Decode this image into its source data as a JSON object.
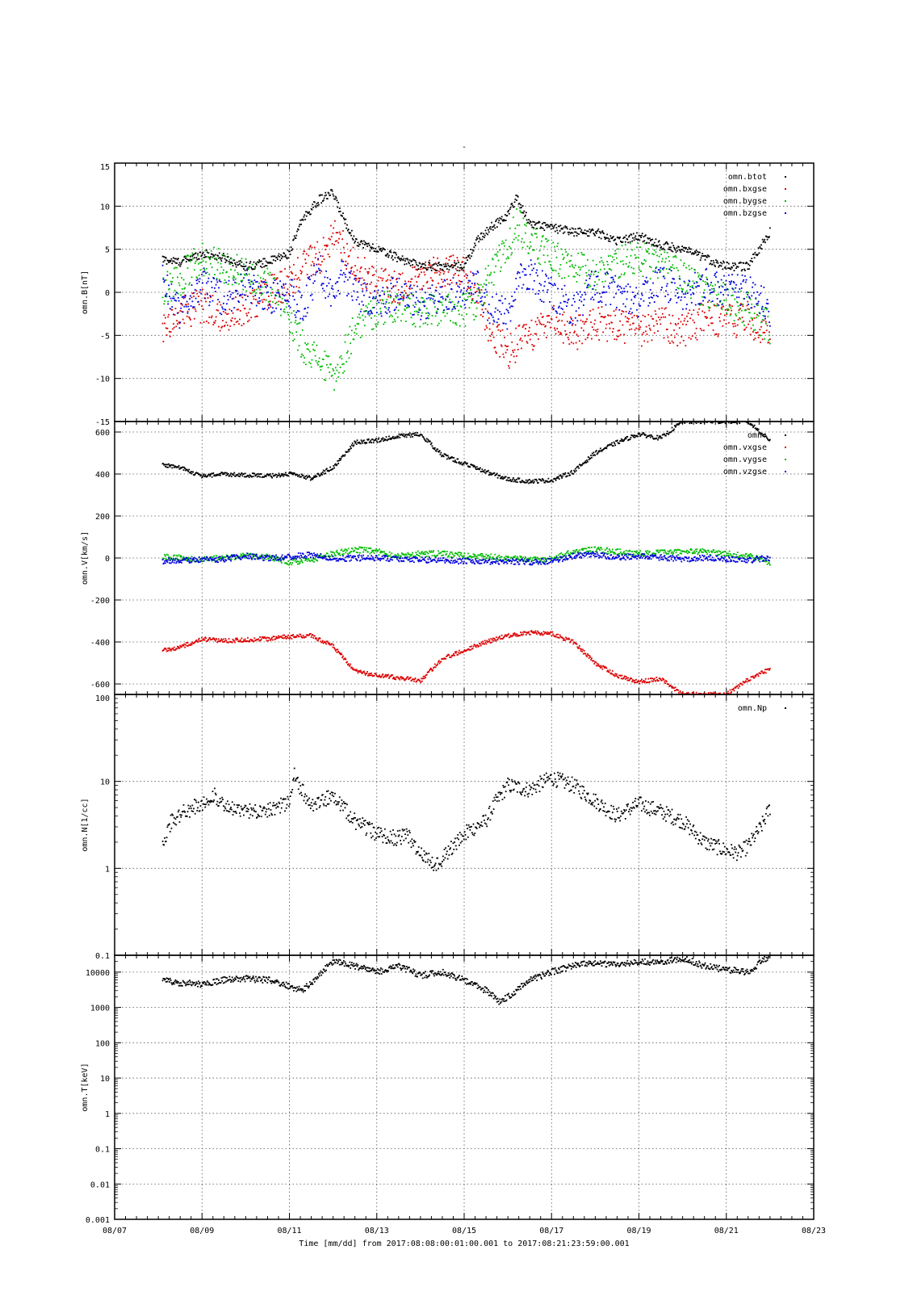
{
  "title": "-",
  "footer": "Time [mm/dd]  from 2017:08:08:00:01:00.001  to  2017:08:21:23:59:00.001",
  "chart_data": [
    {
      "type": "scatter",
      "ylabel": "omn.B[nT]",
      "ylim": [
        -15,
        15
      ],
      "yticks": [
        "15",
        "10",
        "5",
        "0",
        "-5",
        "-10",
        "-15"
      ],
      "grid": true,
      "legend_position": "top-right",
      "x_units": "days since 08/07 00:00",
      "series": [
        {
          "name": "omn.btot",
          "color": "#000000",
          "x": [
            1.1,
            1.5,
            2.0,
            2.5,
            3.0,
            3.5,
            4.0,
            4.3,
            4.7,
            5.0,
            5.2,
            5.5,
            6.0,
            6.5,
            7.0,
            7.5,
            8.0,
            8.3,
            8.6,
            9.0,
            9.2,
            9.5,
            10.0,
            10.5,
            11.0,
            11.5,
            12.0,
            12.5,
            13.0,
            13.5,
            14.0,
            14.5,
            15.0
          ],
          "y": [
            3.8,
            3.5,
            4.5,
            4.0,
            3.0,
            3.5,
            4.5,
            8.5,
            10.8,
            11.5,
            9.0,
            6.0,
            5.0,
            4.0,
            3.0,
            3.0,
            3.0,
            6.0,
            7.5,
            9.0,
            11.0,
            8.0,
            7.5,
            7.0,
            7.0,
            6.0,
            6.5,
            5.5,
            5.0,
            4.0,
            3.0,
            3.0,
            7.0
          ]
        },
        {
          "name": "omn.bxgse",
          "color": "#dd0000",
          "x": [
            1.1,
            1.5,
            2.0,
            2.5,
            3.0,
            3.5,
            4.0,
            4.3,
            4.7,
            5.0,
            5.2,
            5.5,
            6.0,
            6.5,
            7.0,
            7.5,
            8.0,
            8.3,
            8.6,
            9.0,
            9.2,
            9.5,
            10.0,
            10.5,
            11.0,
            11.5,
            12.0,
            12.5,
            13.0,
            13.5,
            14.0,
            14.5,
            15.0
          ],
          "y": [
            -3.8,
            -2.5,
            -1.5,
            -2.8,
            -2.0,
            0.0,
            1.0,
            3.0,
            4.0,
            6.5,
            5.5,
            3.0,
            1.0,
            0.5,
            2.0,
            2.5,
            2.5,
            0.0,
            -4.5,
            -7.0,
            -6.0,
            -5.0,
            -3.0,
            -5.0,
            -3.5,
            -4.0,
            -4.5,
            -3.5,
            -4.5,
            -3.0,
            -3.5,
            -3.0,
            -5.0
          ]
        },
        {
          "name": "omn.bygse",
          "color": "#00bb00",
          "x": [
            1.1,
            1.5,
            2.0,
            2.5,
            3.0,
            3.5,
            4.0,
            4.3,
            4.7,
            5.0,
            5.2,
            5.5,
            6.0,
            6.5,
            7.0,
            7.5,
            8.0,
            8.3,
            8.6,
            9.0,
            9.2,
            9.5,
            10.0,
            10.5,
            11.0,
            11.5,
            12.0,
            12.5,
            13.0,
            13.5,
            14.0,
            14.5,
            15.0
          ],
          "y": [
            0.5,
            1.5,
            4.0,
            3.0,
            2.0,
            1.0,
            -3.0,
            -6.0,
            -8.0,
            -10.0,
            -8.0,
            -4.0,
            -2.0,
            -1.5,
            -2.5,
            -2.0,
            -2.0,
            -1.0,
            2.0,
            5.0,
            8.0,
            6.0,
            4.0,
            3.0,
            2.0,
            3.5,
            4.0,
            3.0,
            2.0,
            0.0,
            -1.0,
            -2.0,
            -4.0
          ]
        },
        {
          "name": "omn.bzgse",
          "color": "#0000dd",
          "x": [
            1.1,
            1.5,
            2.0,
            2.5,
            3.0,
            3.5,
            4.0,
            4.3,
            4.7,
            5.0,
            5.2,
            5.5,
            6.0,
            6.5,
            7.0,
            7.5,
            8.0,
            8.3,
            8.6,
            9.0,
            9.2,
            9.5,
            10.0,
            10.5,
            11.0,
            11.5,
            12.0,
            12.5,
            13.0,
            13.5,
            14.0,
            14.5,
            15.0
          ],
          "y": [
            1.5,
            -2.5,
            1.0,
            -1.0,
            1.0,
            -0.5,
            0.0,
            -2.0,
            3.0,
            -1.0,
            2.0,
            0.0,
            -1.0,
            0.0,
            -1.5,
            -0.5,
            0.0,
            1.0,
            -2.0,
            -2.5,
            1.0,
            2.0,
            0.0,
            -2.0,
            1.0,
            0.0,
            -1.0,
            1.5,
            -0.5,
            1.0,
            0.0,
            0.5,
            -2.0
          ]
        }
      ]
    },
    {
      "type": "scatter",
      "ylabel": "omn.V[km/s]",
      "ylim": [
        -650,
        650
      ],
      "yticks": [
        "600",
        "400",
        "200",
        "0",
        "-200",
        "-400",
        "-600"
      ],
      "grid": true,
      "legend_position": "top-right",
      "series": [
        {
          "name": "omn.",
          "color": "#000000",
          "x": [
            1.1,
            1.5,
            2.0,
            2.5,
            3.0,
            3.5,
            4.0,
            4.5,
            5.0,
            5.5,
            6.0,
            6.5,
            7.0,
            7.5,
            8.0,
            8.5,
            9.0,
            9.5,
            10.0,
            10.5,
            11.0,
            11.5,
            12.0,
            12.5,
            13.0,
            13.5,
            14.0,
            14.5,
            15.0
          ],
          "y": [
            445,
            430,
            390,
            400,
            395,
            390,
            400,
            380,
            430,
            550,
            560,
            580,
            590,
            490,
            450,
            410,
            375,
            365,
            370,
            410,
            500,
            550,
            590,
            570,
            650,
            650,
            650,
            650,
            560
          ]
        },
        {
          "name": "omn.vxgse",
          "color": "#dd0000",
          "x": [
            1.1,
            1.5,
            2.0,
            2.5,
            3.0,
            3.5,
            4.0,
            4.5,
            5.0,
            5.5,
            6.0,
            6.5,
            7.0,
            7.5,
            8.0,
            8.5,
            9.0,
            9.5,
            10.0,
            10.5,
            11.0,
            11.5,
            12.0,
            12.5,
            13.0,
            13.5,
            14.0,
            14.5,
            15.0
          ],
          "y": [
            -440,
            -425,
            -385,
            -395,
            -390,
            -385,
            -375,
            -370,
            -420,
            -540,
            -560,
            -570,
            -585,
            -480,
            -440,
            -400,
            -370,
            -355,
            -360,
            -400,
            -500,
            -560,
            -590,
            -575,
            -650,
            -650,
            -650,
            -580,
            -530
          ]
        },
        {
          "name": "omn.vygse",
          "color": "#00bb00",
          "x": [
            1.1,
            1.5,
            2.0,
            2.5,
            3.0,
            3.5,
            4.0,
            4.5,
            5.0,
            5.5,
            6.0,
            6.5,
            7.0,
            7.5,
            8.0,
            8.5,
            9.0,
            9.5,
            10.0,
            10.5,
            11.0,
            11.5,
            12.0,
            12.5,
            13.0,
            13.5,
            14.0,
            14.5,
            15.0
          ],
          "y": [
            5,
            0,
            -5,
            0,
            10,
            5,
            -20,
            -10,
            20,
            40,
            30,
            10,
            20,
            20,
            10,
            5,
            0,
            -10,
            -5,
            30,
            40,
            30,
            20,
            25,
            30,
            30,
            20,
            10,
            -20
          ]
        },
        {
          "name": "omn.vzgse",
          "color": "#0000dd",
          "x": [
            1.1,
            1.5,
            2.0,
            2.5,
            3.0,
            3.5,
            4.0,
            4.5,
            5.0,
            5.5,
            6.0,
            6.5,
            7.0,
            7.5,
            8.0,
            8.5,
            9.0,
            9.5,
            10.0,
            10.5,
            11.0,
            11.5,
            12.0,
            12.5,
            13.0,
            13.5,
            14.0,
            14.5,
            15.0
          ],
          "y": [
            -15,
            -10,
            -10,
            -5,
            10,
            0,
            5,
            15,
            -5,
            0,
            0,
            -5,
            -10,
            -10,
            -15,
            -20,
            -15,
            -20,
            -15,
            10,
            15,
            0,
            10,
            0,
            -5,
            0,
            -5,
            -10,
            0
          ]
        }
      ]
    },
    {
      "type": "scatter",
      "ylabel": "omn.N[1/cc]",
      "yscale": "log",
      "ylim": [
        0.1,
        100
      ],
      "yticks": [
        "100",
        "10",
        "1",
        "0.1"
      ],
      "grid": true,
      "legend_position": "top-right",
      "series": [
        {
          "name": "omn.Np",
          "color": "#000000",
          "x": [
            1.1,
            1.3,
            1.6,
            2.0,
            2.3,
            2.5,
            3.0,
            3.5,
            4.0,
            4.1,
            4.5,
            5.0,
            5.5,
            6.0,
            6.5,
            6.7,
            7.0,
            7.3,
            7.5,
            8.0,
            8.5,
            8.7,
            9.0,
            9.5,
            10.0,
            10.5,
            11.0,
            11.5,
            12.0,
            12.5,
            13.0,
            13.5,
            14.0,
            14.3,
            14.5,
            14.8,
            15.0
          ],
          "y": [
            2.0,
            3.5,
            4.5,
            5.5,
            7.0,
            5.0,
            4.5,
            4.8,
            5.5,
            12.0,
            5.0,
            7.0,
            3.5,
            2.5,
            2.2,
            2.4,
            1.5,
            1.1,
            1.3,
            2.5,
            3.5,
            5.5,
            9.0,
            8.0,
            11.0,
            9.0,
            6.0,
            4.0,
            5.5,
            4.5,
            3.5,
            2.0,
            1.6,
            1.5,
            1.8,
            3.0,
            5.0
          ]
        }
      ]
    },
    {
      "type": "scatter",
      "ylabel": "omn.T[keV]",
      "yscale": "log",
      "ylim": [
        0.001,
        30000
      ],
      "yticks": [
        "10000",
        "1000",
        "100",
        "10",
        "1",
        "0.1",
        "0.01",
        "0.001"
      ],
      "grid": true,
      "series": [
        {
          "name": "",
          "color": "#000000",
          "x": [
            1.1,
            1.5,
            2.0,
            2.5,
            3.0,
            3.5,
            4.0,
            4.3,
            4.5,
            5.0,
            5.5,
            6.0,
            6.5,
            7.0,
            7.5,
            8.0,
            8.5,
            8.8,
            9.0,
            9.5,
            10.0,
            10.5,
            11.0,
            11.5,
            12.0,
            12.5,
            13.0,
            13.5,
            14.0,
            14.5,
            15.0
          ],
          "y": [
            6000,
            5000,
            4500,
            6000,
            6500,
            6000,
            4000,
            3000,
            5000,
            20000,
            15000,
            10000,
            15000,
            8000,
            10000,
            6000,
            3000,
            1500,
            2000,
            6000,
            10000,
            15000,
            18000,
            16000,
            20000,
            18000,
            25000,
            15000,
            12000,
            10000,
            30000
          ]
        }
      ]
    }
  ],
  "xaxis": {
    "ticks": [
      "08/07",
      "08/09",
      "08/11",
      "08/13",
      "08/15",
      "08/17",
      "08/19",
      "08/21",
      "08/23"
    ]
  }
}
